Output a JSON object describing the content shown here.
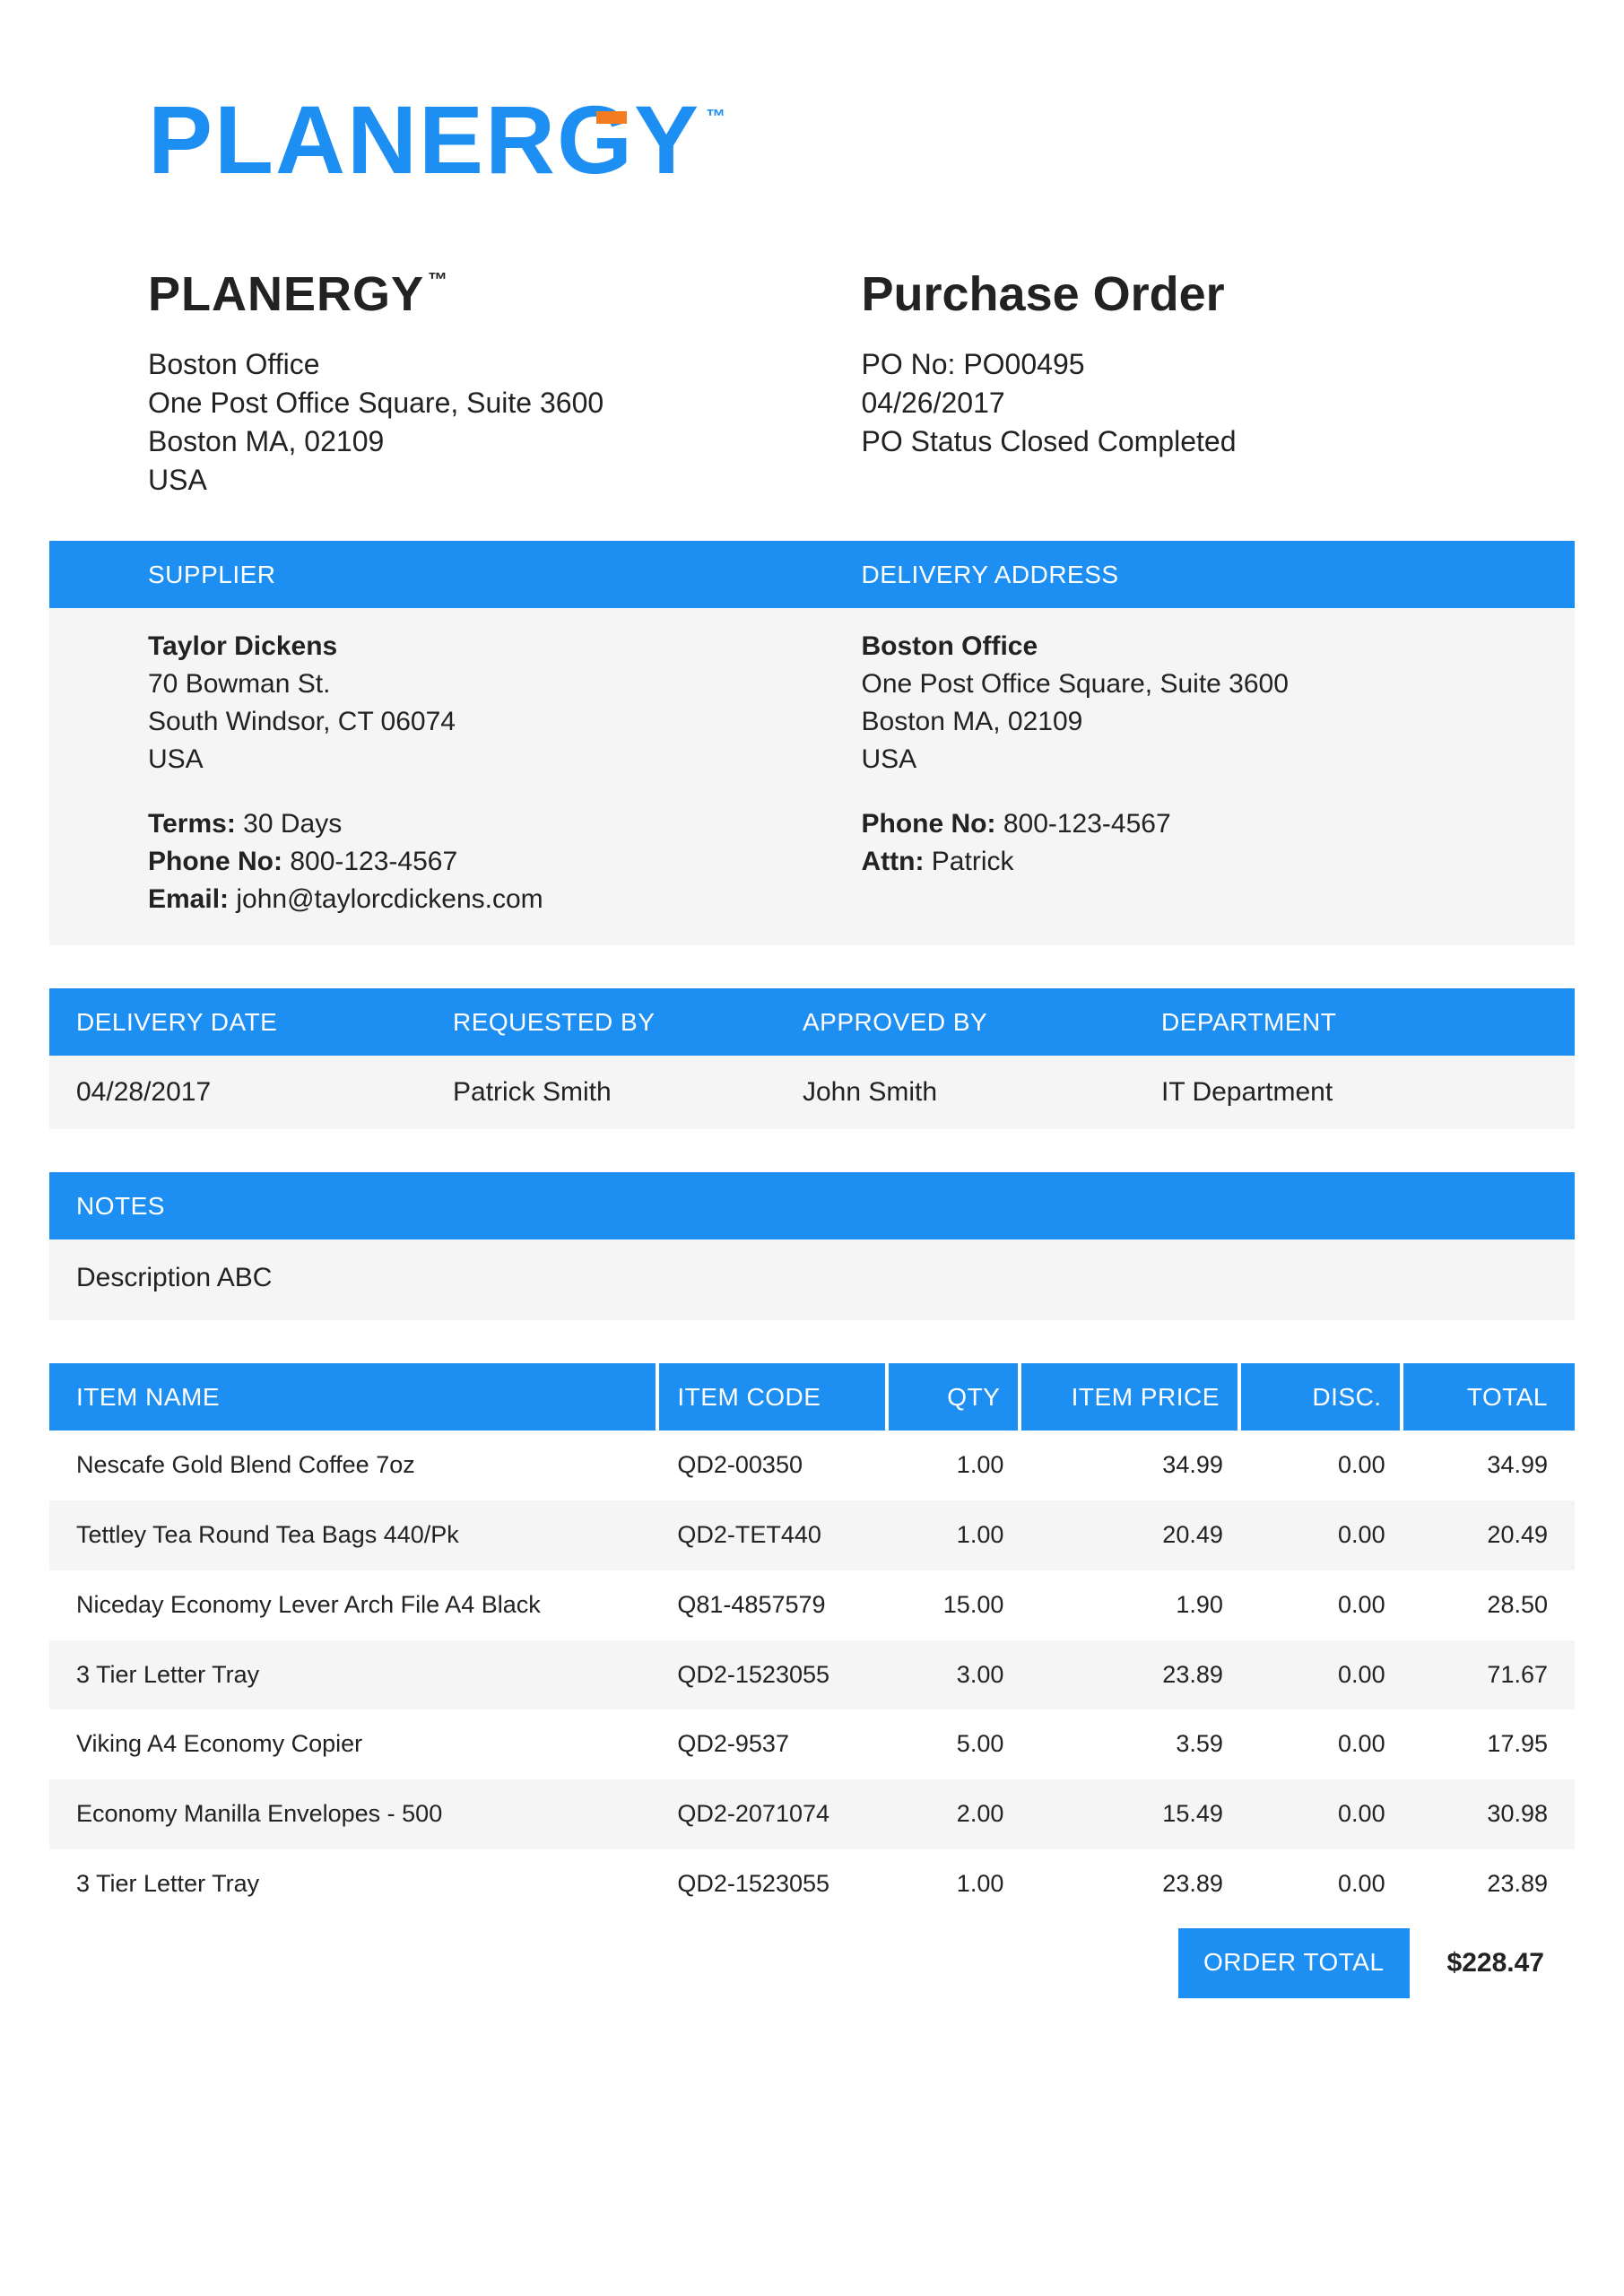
{
  "colors": {
    "brand_blue": "#1e8ff2",
    "accent_orange": "#f47b20",
    "row_alt": "#f5f5f5",
    "text": "#222222",
    "white": "#ffffff"
  },
  "logo": {
    "text": "PLANERGY",
    "tm": "™"
  },
  "company": {
    "name": "PLANERGY",
    "tm": "™",
    "office": "Boston Office",
    "line1": "One Post Office Square, Suite 3600",
    "line2": "Boston MA, 02109",
    "country": "USA"
  },
  "po": {
    "title": "Purchase Order",
    "no_label": "PO No: ",
    "no": "PO00495",
    "date": "04/26/2017",
    "status": "PO Status Closed Completed"
  },
  "supplier_header": "SUPPLIER",
  "delivery_header": "DELIVERY ADDRESS",
  "supplier": {
    "name": "Taylor Dickens",
    "line1": "70 Bowman St.",
    "line2": "South Windsor, CT 06074",
    "country": "USA",
    "terms_label": "Terms: ",
    "terms": "30 Days",
    "phone_label": "Phone No: ",
    "phone": "800-123-4567",
    "email_label": "Email: ",
    "email": "john@taylorcdickens.com"
  },
  "delivery": {
    "name": "Boston Office",
    "line1": "One Post Office Square, Suite 3600",
    "line2": "Boston MA, 02109",
    "country": "USA",
    "phone_label": "Phone No: ",
    "phone": "800-123-4567",
    "attn_label": "Attn: ",
    "attn": "Patrick"
  },
  "info": {
    "hdr_date": "DELIVERY DATE",
    "hdr_req": "REQUESTED BY",
    "hdr_appr": "APPROVED BY",
    "hdr_dept": "DEPARTMENT",
    "date": "04/28/2017",
    "requested_by": "Patrick Smith",
    "approved_by": "John Smith",
    "department": "IT Department"
  },
  "notes": {
    "header": "NOTES",
    "text": "Description ABC"
  },
  "items_header": {
    "name": "ITEM NAME",
    "code": "ITEM CODE",
    "qty": "QTY",
    "price": "ITEM PRICE",
    "disc": "DISC.",
    "total": "TOTAL"
  },
  "items": [
    {
      "name": "Nescafe Gold Blend Coffee 7oz",
      "code": "QD2-00350",
      "qty": "1.00",
      "price": "34.99",
      "disc": "0.00",
      "total": "34.99"
    },
    {
      "name": "Tettley Tea Round Tea Bags 440/Pk",
      "code": "QD2-TET440",
      "qty": "1.00",
      "price": "20.49",
      "disc": "0.00",
      "total": "20.49"
    },
    {
      "name": "Niceday Economy Lever Arch File A4 Black",
      "code": "Q81-4857579",
      "qty": "15.00",
      "price": "1.90",
      "disc": "0.00",
      "total": "28.50"
    },
    {
      "name": "3 Tier Letter Tray",
      "code": "QD2-1523055",
      "qty": "3.00",
      "price": "23.89",
      "disc": "0.00",
      "total": "71.67"
    },
    {
      "name": "Viking A4 Economy Copier",
      "code": "QD2-9537",
      "qty": "5.00",
      "price": "3.59",
      "disc": "0.00",
      "total": "17.95"
    },
    {
      "name": "Economy Manilla Envelopes - 500",
      "code": "QD2-2071074",
      "qty": "2.00",
      "price": "15.49",
      "disc": "0.00",
      "total": "30.98"
    },
    {
      "name": "3 Tier Letter Tray",
      "code": "QD2-1523055",
      "qty": "1.00",
      "price": "23.89",
      "disc": "0.00",
      "total": "23.89"
    }
  ],
  "order_total": {
    "label": "ORDER TOTAL",
    "value": "$228.47"
  }
}
